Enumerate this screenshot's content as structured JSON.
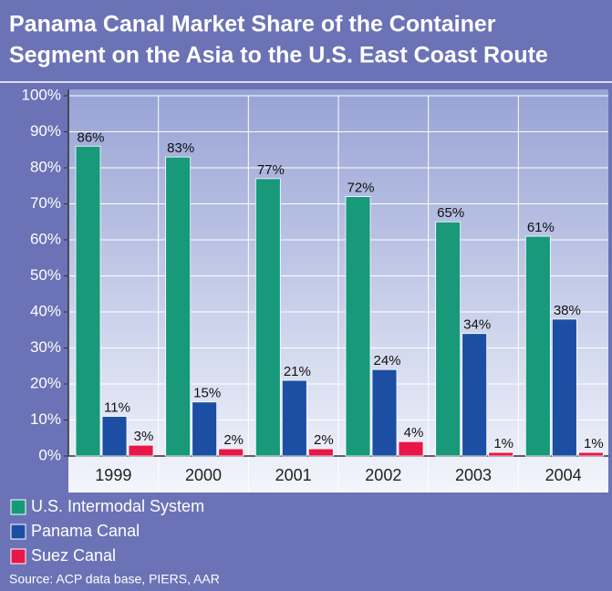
{
  "chart_data": {
    "type": "bar",
    "title": [
      "Panama Canal Market Share of the Container",
      "Segment on the Asia to the U.S. East Coast Route"
    ],
    "categories": [
      "1999",
      "2000",
      "2001",
      "2002",
      "2003",
      "2004"
    ],
    "series": [
      {
        "name": "U.S. Intermodal System",
        "color": "#17997a",
        "values": [
          86,
          83,
          77,
          72,
          65,
          61
        ],
        "value_labels": [
          "86%",
          "83%",
          "77%",
          "72%",
          "65%",
          "61%"
        ]
      },
      {
        "name": "Panama Canal",
        "color": "#1c4fa4",
        "values": [
          11,
          15,
          21,
          24,
          34,
          38
        ],
        "value_labels": [
          "11%",
          "15%",
          "21%",
          "24%",
          "34%",
          "38%"
        ]
      },
      {
        "name": "Suez Canal",
        "color": "#e8174a",
        "values": [
          3,
          2,
          2,
          4,
          1,
          1
        ],
        "value_labels": [
          "3%",
          "2%",
          "2%",
          "4%",
          "1%",
          "1%"
        ]
      }
    ],
    "ylim": [
      0,
      100
    ],
    "yticks": [
      {
        "value": 0,
        "label": "0%"
      },
      {
        "value": 10,
        "label": "10%"
      },
      {
        "value": 20,
        "label": "20%"
      },
      {
        "value": 30,
        "label": "30%"
      },
      {
        "value": 40,
        "label": "40%"
      },
      {
        "value": 50,
        "label": "50%"
      },
      {
        "value": 60,
        "label": "60%"
      },
      {
        "value": 70,
        "label": "70%"
      },
      {
        "value": 80,
        "label": "80%"
      },
      {
        "value": 90,
        "label": "90%"
      },
      {
        "value": 100,
        "label": "100%"
      }
    ],
    "grid": true,
    "source": "Source: ACP data base, PIERS, AAR"
  }
}
